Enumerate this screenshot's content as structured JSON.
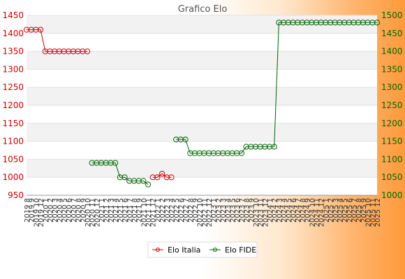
{
  "chart_data": {
    "type": "line",
    "title": "Grafico Elo",
    "categories": [
      "2019 8",
      "2019 9",
      "2019 10",
      "2019 12",
      "2020 1",
      "2020 2",
      "2020 3",
      "2020 4",
      "2020 5",
      "2020 6",
      "2020 7",
      "2020 8",
      "2020 9",
      "2020 10",
      "2020 11",
      "2020 12",
      "2021 1",
      "2021 2",
      "2021 3",
      "2021 4",
      "2021 5",
      "2021 6",
      "2021 7",
      "2021 8",
      "2021 9",
      "2021 10",
      "2021 11",
      "2021 12",
      "2022 1",
      "2022 2",
      "2022 3",
      "2022 4",
      "2022 5",
      "2022 6",
      "2022 7",
      "2022 8",
      "2022 9",
      "2022 10",
      "2022 11",
      "2022 12",
      "2023 1",
      "2023 2",
      "2023 3",
      "2023 4",
      "2023 5",
      "2023 6",
      "2023 7",
      "2023 8",
      "2023 9",
      "2023 10",
      "2023 11",
      "2023 12",
      "2024 1",
      "2024 2",
      "2024 3",
      "2024 4",
      "2024 5",
      "2024 6",
      "2024 7",
      "2024 8",
      "2024 9",
      "2024 10",
      "2024 11",
      "2024 12",
      "2025 1",
      "2025 2",
      "2025 3",
      "2025 4",
      "2025 5",
      "2025 6",
      "2025 7",
      "2025 8",
      "2025 9",
      "2025 10",
      "2025 11",
      "2025 12"
    ],
    "series": [
      {
        "name": "Elo Italia",
        "color": "#cc0000",
        "axis": "left",
        "values": [
          1410,
          1410,
          1410,
          1410,
          1350,
          1350,
          1350,
          1350,
          1350,
          1350,
          1350,
          1350,
          1350,
          1350,
          null,
          null,
          null,
          null,
          null,
          null,
          null,
          null,
          null,
          null,
          null,
          null,
          null,
          1000,
          1000,
          1010,
          1000,
          1000,
          null,
          null,
          null,
          null,
          null,
          null,
          null,
          null,
          null,
          null,
          null,
          null,
          null,
          null,
          null,
          null,
          null,
          null,
          null,
          null,
          null,
          null,
          null,
          null,
          null,
          null,
          null,
          null,
          null,
          null,
          null,
          null,
          null,
          null,
          null,
          null,
          null,
          null,
          null,
          null,
          null,
          null,
          null,
          null
        ]
      },
      {
        "name": "Elo FIDE",
        "color": "#006600",
        "axis": "right",
        "values": [
          null,
          null,
          null,
          null,
          null,
          null,
          null,
          null,
          null,
          null,
          null,
          null,
          null,
          null,
          1090,
          1090,
          1090,
          1090,
          1090,
          1090,
          1050,
          1050,
          1040,
          1040,
          1040,
          1040,
          1030,
          null,
          null,
          null,
          null,
          null,
          1155,
          1155,
          1155,
          1117,
          1117,
          1117,
          1117,
          1117,
          1117,
          1117,
          1117,
          1117,
          1117,
          1117,
          1117,
          1135,
          1135,
          1135,
          1135,
          1135,
          1135,
          1135,
          1480,
          1480,
          1480,
          1480,
          1480,
          1480,
          1480,
          1480,
          1480,
          1480,
          1480,
          1480,
          1480,
          1480,
          1480,
          1480,
          1480,
          1480,
          1480,
          1480,
          1480,
          1480
        ]
      }
    ],
    "y_left": {
      "min": 950,
      "max": 1450,
      "ticks": [
        950,
        1000,
        1050,
        1100,
        1150,
        1200,
        1250,
        1300,
        1350,
        1400,
        1450
      ]
    },
    "y_right": {
      "min": 1000,
      "max": 1500,
      "ticks": [
        1000,
        1050,
        1100,
        1150,
        1200,
        1250,
        1300,
        1350,
        1400,
        1450,
        1500
      ]
    },
    "grid": true,
    "legend_position": "bottom"
  }
}
